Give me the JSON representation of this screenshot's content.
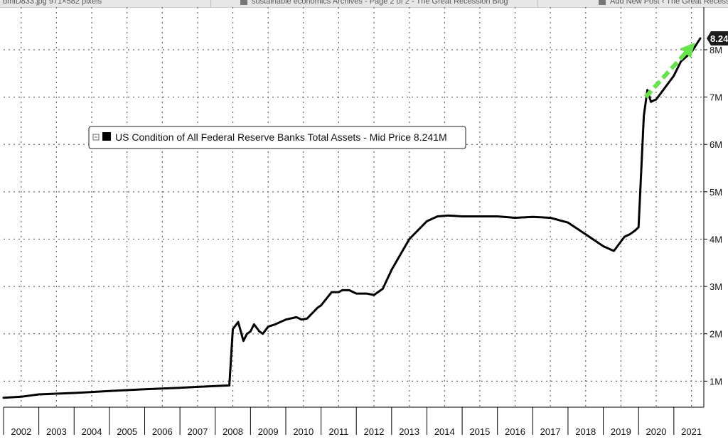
{
  "browser": {
    "tabs": [
      {
        "label": "bmiD833.jpg 971×582 pixels"
      },
      {
        "label": "sustainable economics Archives - Page 2 of 2 - The Great Recession Blog"
      },
      {
        "label": "Add New Post ‹ The Great Recessi"
      }
    ]
  },
  "chart_data": {
    "type": "line",
    "title": "",
    "xlabel": "",
    "ylabel": "",
    "x_ticks": [
      "2002",
      "2003",
      "2004",
      "2005",
      "2006",
      "2007",
      "2008",
      "2009",
      "2010",
      "2011",
      "2012",
      "2013",
      "2014",
      "2015",
      "2016",
      "2017",
      "2018",
      "2019",
      "2020",
      "2021"
    ],
    "y_ticks": [
      "1M",
      "2M",
      "3M",
      "4M",
      "5M",
      "6M",
      "7M",
      "8M"
    ],
    "xlim": [
      2002.0,
      2021.85
    ],
    "ylim": [
      0.45,
      8.9
    ],
    "grid": true,
    "legend": {
      "placement": "top-left",
      "text": "US Condition of All Federal Reserve Banks Total Assets - Mid Price 8.241M"
    },
    "last_value_label": "8.24",
    "series": [
      {
        "name": "US Condition of All Federal Reserve Banks Total Assets",
        "color": "#000000",
        "x": [
          2002.0,
          2002.5,
          2003.0,
          2004.0,
          2005.0,
          2006.0,
          2007.0,
          2007.5,
          2008.4,
          2008.5,
          2008.65,
          2008.8,
          2008.9,
          2009.0,
          2009.1,
          2009.25,
          2009.35,
          2009.5,
          2009.7,
          2010.0,
          2010.3,
          2010.45,
          2010.6,
          2010.9,
          2011.0,
          2011.3,
          2011.5,
          2011.6,
          2011.8,
          2012.0,
          2012.3,
          2012.5,
          2012.75,
          2013.0,
          2013.5,
          2014.0,
          2014.3,
          2014.6,
          2015.0,
          2015.5,
          2016.0,
          2016.5,
          2017.0,
          2017.5,
          2018.0,
          2018.5,
          2019.0,
          2019.3,
          2019.6,
          2019.75,
          2019.9,
          2020.0,
          2020.15,
          2020.25,
          2020.35,
          2020.5,
          2020.7,
          2021.0,
          2021.2,
          2021.5,
          2021.75
        ],
        "y": [
          0.65,
          0.67,
          0.72,
          0.75,
          0.79,
          0.83,
          0.86,
          0.88,
          0.91,
          2.1,
          2.25,
          1.85,
          2.0,
          2.05,
          2.2,
          2.05,
          2.0,
          2.15,
          2.2,
          2.3,
          2.35,
          2.3,
          2.32,
          2.55,
          2.6,
          2.88,
          2.88,
          2.92,
          2.92,
          2.85,
          2.85,
          2.82,
          2.95,
          3.35,
          4.0,
          4.38,
          4.48,
          4.5,
          4.48,
          4.48,
          4.48,
          4.45,
          4.47,
          4.45,
          4.35,
          4.1,
          3.85,
          3.75,
          4.05,
          4.1,
          4.18,
          4.25,
          6.6,
          7.15,
          6.9,
          6.95,
          7.15,
          7.45,
          7.75,
          7.95,
          8.24
        ]
      }
    ],
    "annotation": {
      "type": "arrow",
      "color": "#66e34a",
      "from": [
        2020.2,
        7.0
      ],
      "to": [
        2021.6,
        8.15
      ]
    }
  }
}
